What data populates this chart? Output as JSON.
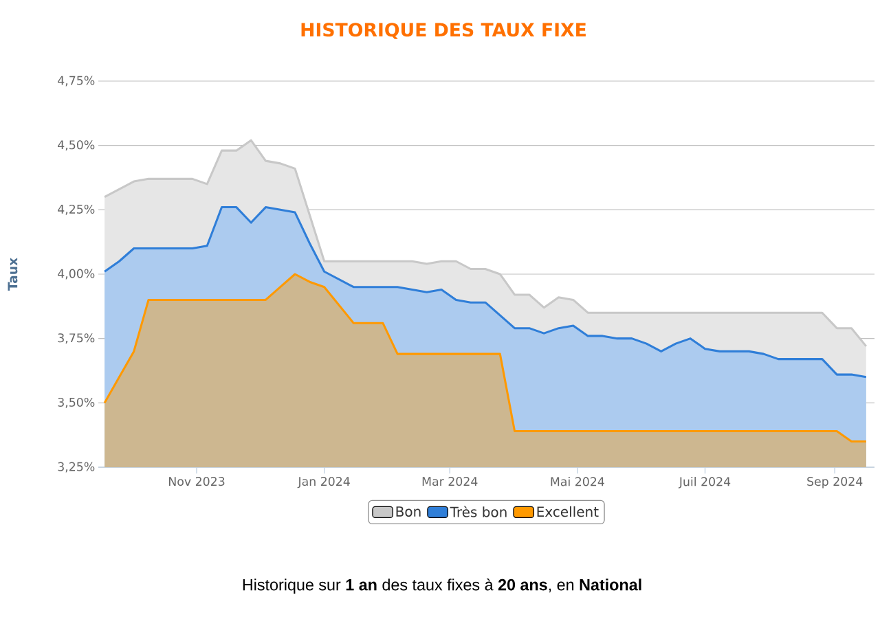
{
  "chart_data": {
    "type": "area",
    "title": "HISTORIQUE DES TAUX FIXE",
    "ylabel": "Taux",
    "annotations": [
      "Historique sur **1 an** des taux fixes à **20 ans**, en **National**"
    ],
    "x": [
      "2023-09-18",
      "2023-09-25",
      "2023-10-02",
      "2023-10-09",
      "2023-10-16",
      "2023-10-23",
      "2023-10-30",
      "2023-11-06",
      "2023-11-13",
      "2023-11-20",
      "2023-11-27",
      "2023-12-04",
      "2023-12-11",
      "2023-12-18",
      "2023-12-25",
      "2024-01-01",
      "2024-01-08",
      "2024-01-15",
      "2024-01-22",
      "2024-01-29",
      "2024-02-05",
      "2024-02-12",
      "2024-02-19",
      "2024-02-26",
      "2024-03-04",
      "2024-03-11",
      "2024-03-18",
      "2024-03-25",
      "2024-04-01",
      "2024-04-08",
      "2024-04-15",
      "2024-04-22",
      "2024-04-29",
      "2024-05-06",
      "2024-05-13",
      "2024-05-20",
      "2024-05-27",
      "2024-06-03",
      "2024-06-10",
      "2024-06-17",
      "2024-06-24",
      "2024-07-01",
      "2024-07-08",
      "2024-07-15",
      "2024-07-22",
      "2024-07-29",
      "2024-08-05",
      "2024-08-12",
      "2024-08-19",
      "2024-08-26",
      "2024-09-02",
      "2024-09-09",
      "2024-09-16"
    ],
    "series": [
      {
        "name": "Bon",
        "color": "#c8c8c8",
        "values": [
          4.3,
          4.33,
          4.36,
          4.37,
          4.37,
          4.37,
          4.37,
          4.35,
          4.48,
          4.48,
          4.52,
          4.44,
          4.43,
          4.41,
          4.23,
          4.05,
          4.05,
          4.05,
          4.05,
          4.05,
          4.05,
          4.05,
          4.04,
          4.05,
          4.05,
          4.02,
          4.02,
          4.0,
          3.92,
          3.92,
          3.87,
          3.91,
          3.9,
          3.85,
          3.85,
          3.85,
          3.85,
          3.85,
          3.85,
          3.85,
          3.85,
          3.85,
          3.85,
          3.85,
          3.85,
          3.85,
          3.85,
          3.85,
          3.85,
          3.85,
          3.79,
          3.79,
          3.72
        ]
      },
      {
        "name": "Très bon",
        "color": "#2f7ed8",
        "values": [
          4.01,
          4.05,
          4.1,
          4.1,
          4.1,
          4.1,
          4.1,
          4.11,
          4.26,
          4.26,
          4.2,
          4.26,
          4.25,
          4.24,
          4.12,
          4.01,
          3.98,
          3.95,
          3.95,
          3.95,
          3.95,
          3.94,
          3.93,
          3.94,
          3.9,
          3.89,
          3.89,
          3.84,
          3.79,
          3.79,
          3.77,
          3.79,
          3.8,
          3.76,
          3.76,
          3.75,
          3.75,
          3.73,
          3.7,
          3.73,
          3.75,
          3.71,
          3.7,
          3.7,
          3.7,
          3.69,
          3.67,
          3.67,
          3.67,
          3.67,
          3.61,
          3.61,
          3.6
        ]
      },
      {
        "name": "Excellent",
        "color": "#ff9900",
        "values": [
          3.5,
          3.6,
          3.7,
          3.9,
          3.9,
          3.9,
          3.9,
          3.9,
          3.9,
          3.9,
          3.9,
          3.9,
          3.95,
          4.0,
          3.97,
          3.95,
          3.88,
          3.81,
          3.81,
          3.81,
          3.69,
          3.69,
          3.69,
          3.69,
          3.69,
          3.69,
          3.69,
          3.69,
          3.39,
          3.39,
          3.39,
          3.39,
          3.39,
          3.39,
          3.39,
          3.39,
          3.39,
          3.39,
          3.39,
          3.39,
          3.39,
          3.39,
          3.39,
          3.39,
          3.39,
          3.39,
          3.39,
          3.39,
          3.39,
          3.39,
          3.39,
          3.35,
          3.35
        ]
      }
    ],
    "xlim": [
      "2023-09-15",
      "2024-09-20"
    ],
    "xticks": [
      {
        "value": "2023-11-01",
        "label": "Nov 2023"
      },
      {
        "value": "2024-01-01",
        "label": "Jan 2024"
      },
      {
        "value": "2024-03-01",
        "label": "Mar 2024"
      },
      {
        "value": "2024-05-01",
        "label": "Mai 2024"
      },
      {
        "value": "2024-07-01",
        "label": "Juil 2024"
      },
      {
        "value": "2024-09-01",
        "label": "Sep 2024"
      }
    ],
    "ylim": [
      3.25,
      4.75
    ],
    "yticks": [
      {
        "value": 3.25,
        "label": "3,25%"
      },
      {
        "value": 3.5,
        "label": "3,50%"
      },
      {
        "value": 3.75,
        "label": "3,75%"
      },
      {
        "value": 4.0,
        "label": "4,00%"
      },
      {
        "value": 4.25,
        "label": "4,25%"
      },
      {
        "value": 4.5,
        "label": "4,50%"
      },
      {
        "value": 4.75,
        "label": "4,75%"
      }
    ],
    "grid": "y",
    "legend": "bottom",
    "marker": "none",
    "line_style": "solid"
  }
}
